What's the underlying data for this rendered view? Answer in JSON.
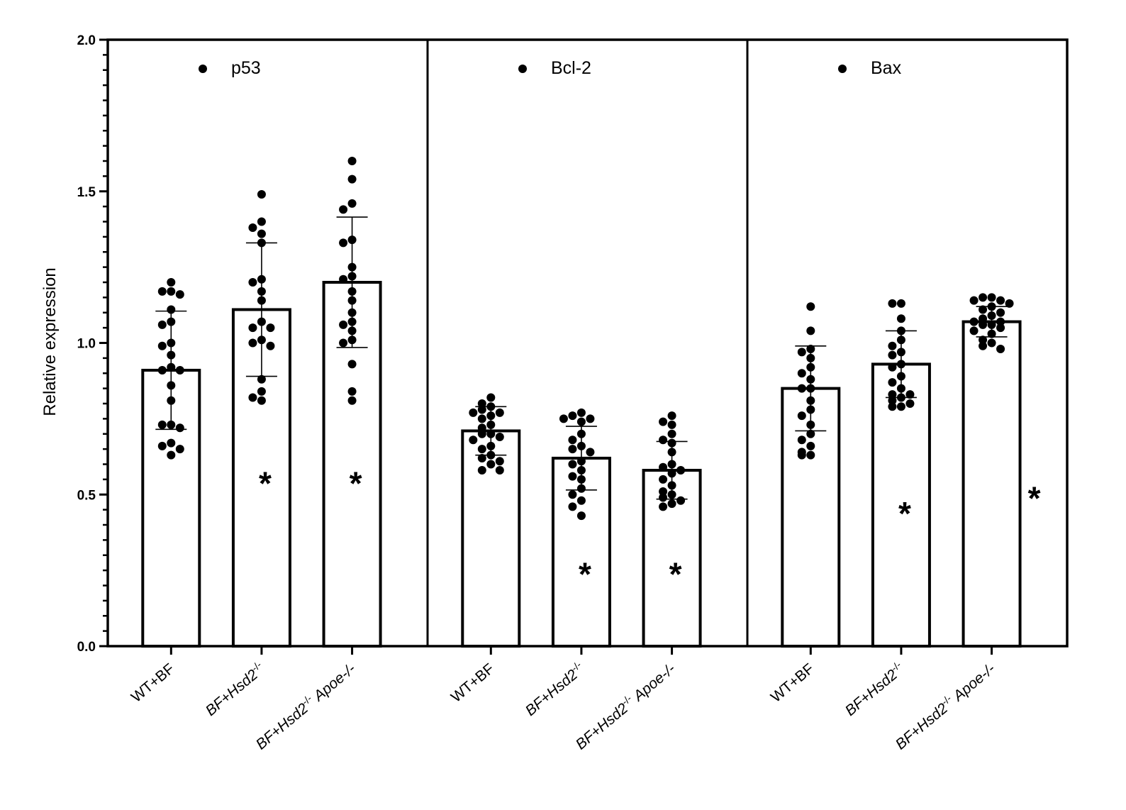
{
  "chart_data": {
    "type": "bar",
    "ylabel": "Relative expression",
    "ylim": [
      0,
      2.0
    ],
    "yticks": [
      "0.0",
      "0.5",
      "1.0",
      "1.5",
      "2.0"
    ],
    "categories": [
      {
        "prefix": "WT+BF",
        "italic": "",
        "sup": "",
        "suffix": ""
      },
      {
        "prefix": "BF+",
        "italic": "Hsd2",
        "sup": "-/-",
        "suffix": ""
      },
      {
        "prefix": "BF+",
        "italic": "Hsd2",
        "sup": "-/-",
        "suffix": " Apoe-/-"
      }
    ],
    "panels": [
      {
        "name": "p53",
        "values": [
          0.91,
          1.11,
          1.2
        ],
        "sd": [
          0.195,
          0.22,
          0.215
        ],
        "significance": [
          "",
          "*",
          "*"
        ],
        "sig_y": [
          0,
          0.57,
          0.57
        ],
        "points": [
          [
            1.2,
            1.17,
            1.17,
            1.16,
            1.11,
            1.07,
            1.06,
            1.0,
            0.99,
            0.96,
            0.92,
            0.91,
            0.91,
            0.86,
            0.81,
            0.73,
            0.73,
            0.72,
            0.67,
            0.66,
            0.65,
            0.63
          ],
          [
            1.49,
            1.4,
            1.38,
            1.36,
            1.33,
            1.21,
            1.2,
            1.17,
            1.14,
            1.07,
            1.05,
            1.05,
            1.01,
            1.0,
            0.99,
            0.88,
            0.84,
            0.82,
            0.81
          ],
          [
            1.6,
            1.54,
            1.46,
            1.44,
            1.34,
            1.33,
            1.25,
            1.22,
            1.21,
            1.17,
            1.14,
            1.1,
            1.07,
            1.06,
            1.04,
            1.01,
            1.0,
            0.93,
            0.84,
            0.81
          ]
        ]
      },
      {
        "name": "Bcl-2",
        "values": [
          0.71,
          0.62,
          0.58
        ],
        "sd": [
          0.08,
          0.105,
          0.095
        ],
        "significance": [
          "",
          "*",
          "*"
        ],
        "sig_y": [
          0,
          0.27,
          0.27
        ],
        "points": [
          [
            0.82,
            0.8,
            0.79,
            0.78,
            0.77,
            0.77,
            0.76,
            0.75,
            0.73,
            0.72,
            0.7,
            0.7,
            0.69,
            0.68,
            0.66,
            0.65,
            0.63,
            0.62,
            0.61,
            0.6,
            0.58,
            0.58
          ],
          [
            0.77,
            0.76,
            0.75,
            0.75,
            0.74,
            0.7,
            0.68,
            0.66,
            0.65,
            0.64,
            0.61,
            0.6,
            0.58,
            0.56,
            0.55,
            0.52,
            0.5,
            0.48,
            0.46,
            0.43
          ],
          [
            0.76,
            0.74,
            0.73,
            0.7,
            0.68,
            0.67,
            0.64,
            0.6,
            0.59,
            0.58,
            0.57,
            0.55,
            0.53,
            0.51,
            0.5,
            0.49,
            0.48,
            0.47,
            0.46
          ]
        ]
      },
      {
        "name": "Bax",
        "values": [
          0.85,
          0.93,
          1.07
        ],
        "sd": [
          0.14,
          0.11,
          0.05
        ],
        "significance": [
          "",
          "*",
          "*"
        ],
        "sig_y": [
          0,
          0.47,
          0.52
        ],
        "points": [
          [
            1.12,
            1.04,
            0.98,
            0.97,
            0.95,
            0.92,
            0.9,
            0.88,
            0.85,
            0.85,
            0.81,
            0.78,
            0.76,
            0.73,
            0.7,
            0.68,
            0.66,
            0.64,
            0.63,
            0.63
          ],
          [
            1.13,
            1.13,
            1.08,
            1.04,
            1.01,
            0.99,
            0.97,
            0.96,
            0.93,
            0.92,
            0.89,
            0.87,
            0.85,
            0.83,
            0.83,
            0.82,
            0.81,
            0.8,
            0.79,
            0.79
          ],
          [
            1.15,
            1.15,
            1.14,
            1.14,
            1.13,
            1.12,
            1.11,
            1.1,
            1.09,
            1.08,
            1.07,
            1.07,
            1.06,
            1.06,
            1.05,
            1.04,
            1.03,
            1.01,
            1.0,
            0.99,
            0.98
          ]
        ]
      }
    ]
  }
}
